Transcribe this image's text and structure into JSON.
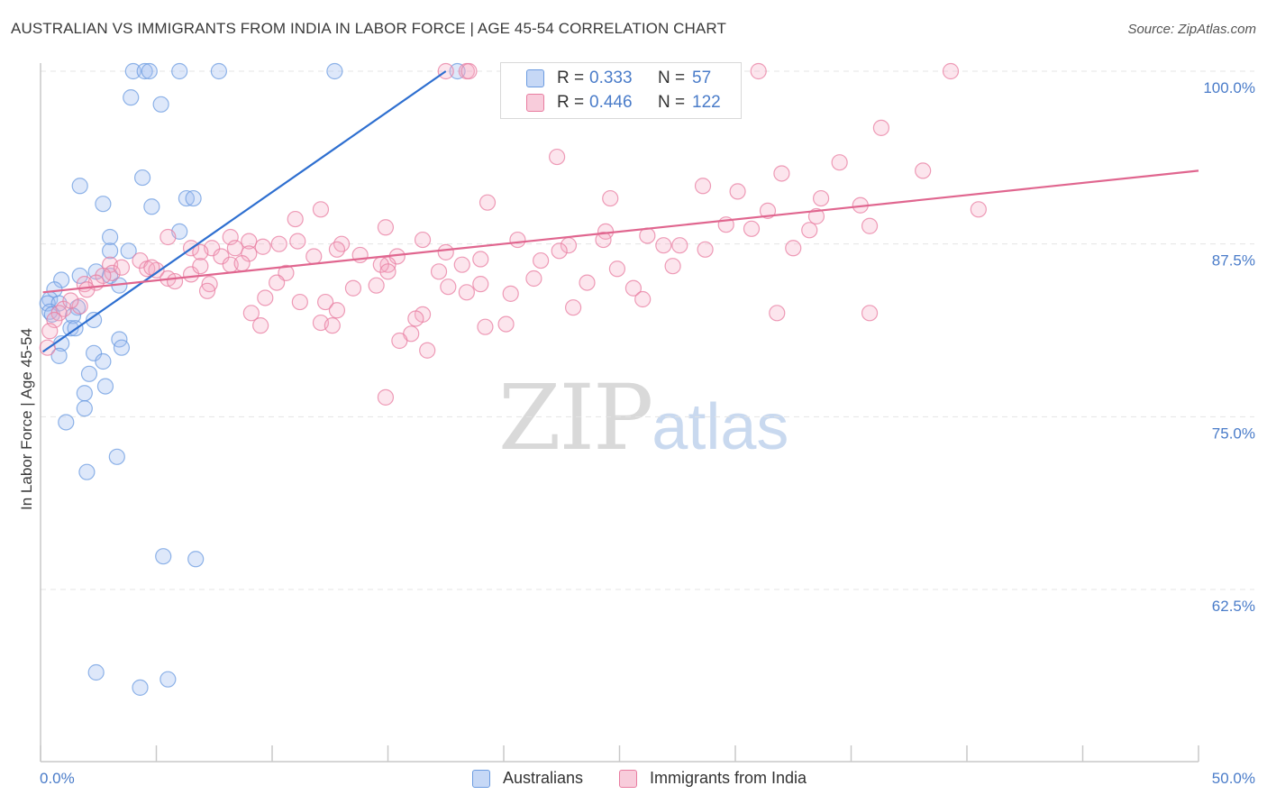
{
  "header": {
    "title": "AUSTRALIAN VS IMMIGRANTS FROM INDIA IN LABOR FORCE | AGE 45-54 CORRELATION CHART",
    "source": "Source: ZipAtlas.com"
  },
  "watermark": {
    "zip": "ZIP",
    "atlas": "atlas"
  },
  "legend": {
    "rows": [
      {
        "r_label": "R =",
        "r_value": "0.333",
        "n_label": "N =",
        "n_value": "57",
        "color": "#6b9be0"
      },
      {
        "r_label": "R =",
        "r_value": "0.446",
        "n_label": "N =",
        "n_value": "122",
        "color": "#e87ca0"
      }
    ]
  },
  "bottom_legend": {
    "australians": "Australians",
    "india": "Immigrants from India"
  },
  "chart_data": {
    "type": "scatter",
    "title": "AUSTRALIAN VS IMMIGRANTS FROM INDIA IN LABOR FORCE | AGE 45-54 CORRELATION CHART",
    "ylabel": "In Labor Force | Age 45-54",
    "xlabel": "",
    "xlim": [
      0,
      50
    ],
    "ylim": [
      52.5,
      101.5
    ],
    "y_ticks": [
      62.5,
      75.0,
      87.5,
      100.0
    ],
    "y_tick_labels": [
      "62.5%",
      "75.0%",
      "87.5%",
      "100.0%"
    ],
    "x_tick_labels": [
      "0.0%",
      "50.0%"
    ],
    "grid": true,
    "series": [
      {
        "name": "Australians",
        "color": "#6b9be0",
        "fill": "rgba(160,190,240,0.35)",
        "trend": {
          "x": [
            0.1,
            17.5
          ],
          "y": [
            79.7,
            100.0
          ]
        },
        "points": [
          [
            4.0,
            100
          ],
          [
            4.5,
            100
          ],
          [
            4.7,
            100
          ],
          [
            6.0,
            100
          ],
          [
            7.7,
            100
          ],
          [
            12.7,
            100
          ],
          [
            18.0,
            100
          ],
          [
            3.9,
            98.1
          ],
          [
            5.2,
            97.6
          ],
          [
            4.4,
            92.3
          ],
          [
            1.7,
            91.7
          ],
          [
            2.7,
            90.4
          ],
          [
            4.8,
            90.2
          ],
          [
            6.3,
            90.8
          ],
          [
            6.6,
            90.8
          ],
          [
            6.0,
            88.4
          ],
          [
            3.0,
            88.0
          ],
          [
            3.0,
            87.0
          ],
          [
            3.8,
            87.0
          ],
          [
            2.4,
            85.5
          ],
          [
            3.0,
            85.2
          ],
          [
            1.7,
            85.2
          ],
          [
            0.9,
            84.9
          ],
          [
            3.4,
            84.5
          ],
          [
            0.6,
            84.2
          ],
          [
            0.4,
            83.5
          ],
          [
            0.3,
            83.2
          ],
          [
            0.8,
            83.2
          ],
          [
            1.6,
            82.9
          ],
          [
            0.4,
            82.6
          ],
          [
            0.5,
            82.4
          ],
          [
            1.4,
            82.3
          ],
          [
            2.3,
            82.0
          ],
          [
            1.3,
            81.4
          ],
          [
            1.5,
            81.4
          ],
          [
            0.9,
            80.3
          ],
          [
            3.4,
            80.6
          ],
          [
            3.5,
            80.0
          ],
          [
            2.3,
            79.6
          ],
          [
            0.8,
            79.4
          ],
          [
            2.7,
            79.0
          ],
          [
            2.1,
            78.1
          ],
          [
            2.8,
            77.2
          ],
          [
            1.9,
            76.7
          ],
          [
            1.9,
            75.6
          ],
          [
            1.1,
            74.6
          ],
          [
            3.3,
            72.1
          ],
          [
            2.0,
            71.0
          ],
          [
            5.3,
            64.9
          ],
          [
            6.7,
            64.7
          ],
          [
            2.4,
            56.5
          ],
          [
            5.5,
            56.0
          ],
          [
            4.3,
            55.4
          ]
        ]
      },
      {
        "name": "Immigrants from India",
        "color": "#e87ca0",
        "fill": "rgba(244,170,195,0.30)",
        "trend": {
          "x": [
            0.1,
            50.0
          ],
          "y": [
            84.0,
            92.8
          ]
        },
        "points": [
          [
            17.5,
            100
          ],
          [
            18.4,
            100
          ],
          [
            18.5,
            100
          ],
          [
            31.0,
            100
          ],
          [
            39.3,
            100
          ],
          [
            36.3,
            95.9
          ],
          [
            22.3,
            93.8
          ],
          [
            34.5,
            93.4
          ],
          [
            32.0,
            92.6
          ],
          [
            28.6,
            91.7
          ],
          [
            30.1,
            91.3
          ],
          [
            33.7,
            90.8
          ],
          [
            19.3,
            90.5
          ],
          [
            24.6,
            90.8
          ],
          [
            35.4,
            90.3
          ],
          [
            40.5,
            90.0
          ],
          [
            12.1,
            90.0
          ],
          [
            11.0,
            89.3
          ],
          [
            33.5,
            89.5
          ],
          [
            29.6,
            88.9
          ],
          [
            35.8,
            88.8
          ],
          [
            24.4,
            88.4
          ],
          [
            14.9,
            88.7
          ],
          [
            33.2,
            88.5
          ],
          [
            8.2,
            88.0
          ],
          [
            5.5,
            88.0
          ],
          [
            16.5,
            87.8
          ],
          [
            9.0,
            87.7
          ],
          [
            10.3,
            87.5
          ],
          [
            11.1,
            87.7
          ],
          [
            13.0,
            87.5
          ],
          [
            22.8,
            87.4
          ],
          [
            24.3,
            87.8
          ],
          [
            26.9,
            87.4
          ],
          [
            27.6,
            87.4
          ],
          [
            28.7,
            87.1
          ],
          [
            6.5,
            87.2
          ],
          [
            7.4,
            87.2
          ],
          [
            8.4,
            87.2
          ],
          [
            12.8,
            87.1
          ],
          [
            22.4,
            87.0
          ],
          [
            9.0,
            86.8
          ],
          [
            7.8,
            86.6
          ],
          [
            11.8,
            86.6
          ],
          [
            15.4,
            86.6
          ],
          [
            19.0,
            86.4
          ],
          [
            4.3,
            86.3
          ],
          [
            15.0,
            86.0
          ],
          [
            3.0,
            86.0
          ],
          [
            8.2,
            86.0
          ],
          [
            14.7,
            86.0
          ],
          [
            4.6,
            85.7
          ],
          [
            5.0,
            85.6
          ],
          [
            3.1,
            85.4
          ],
          [
            10.6,
            85.4
          ],
          [
            18.2,
            86.0
          ],
          [
            2.7,
            85.2
          ],
          [
            6.5,
            85.3
          ],
          [
            21.3,
            85.0
          ],
          [
            24.9,
            85.7
          ],
          [
            15.0,
            85.5
          ],
          [
            17.2,
            85.5
          ],
          [
            5.5,
            85.0
          ],
          [
            2.4,
            84.7
          ],
          [
            1.9,
            84.6
          ],
          [
            7.3,
            84.6
          ],
          [
            10.2,
            84.7
          ],
          [
            14.5,
            84.5
          ],
          [
            13.5,
            84.3
          ],
          [
            17.6,
            84.4
          ],
          [
            25.6,
            84.3
          ],
          [
            18.4,
            84.0
          ],
          [
            7.2,
            84.1
          ],
          [
            20.3,
            83.9
          ],
          [
            9.7,
            83.6
          ],
          [
            11.2,
            83.3
          ],
          [
            12.3,
            83.3
          ],
          [
            26.0,
            83.5
          ],
          [
            1.7,
            83.0
          ],
          [
            1.0,
            82.8
          ],
          [
            0.8,
            82.5
          ],
          [
            12.8,
            82.7
          ],
          [
            9.1,
            82.5
          ],
          [
            16.5,
            82.4
          ],
          [
            31.8,
            82.5
          ],
          [
            35.8,
            82.5
          ],
          [
            0.6,
            82.0
          ],
          [
            12.1,
            81.8
          ],
          [
            20.1,
            81.7
          ],
          [
            12.6,
            81.6
          ],
          [
            9.5,
            81.6
          ],
          [
            19.2,
            81.5
          ],
          [
            0.4,
            81.2
          ],
          [
            16.0,
            81.0
          ],
          [
            15.5,
            80.5
          ],
          [
            0.3,
            80.0
          ],
          [
            16.7,
            79.8
          ],
          [
            14.9,
            76.4
          ],
          [
            4.8,
            85.8
          ],
          [
            6.9,
            86.9
          ],
          [
            23.6,
            84.7
          ],
          [
            19.0,
            84.6
          ],
          [
            20.6,
            87.8
          ],
          [
            13.8,
            86.7
          ],
          [
            26.2,
            88.1
          ],
          [
            17.5,
            86.9
          ],
          [
            21.6,
            86.3
          ],
          [
            30.7,
            88.6
          ],
          [
            32.5,
            87.2
          ],
          [
            38.1,
            92.8
          ],
          [
            31.4,
            89.9
          ],
          [
            3.5,
            85.8
          ],
          [
            5.8,
            84.8
          ],
          [
            1.3,
            83.4
          ],
          [
            2.0,
            84.2
          ],
          [
            9.6,
            87.3
          ],
          [
            8.7,
            86.1
          ],
          [
            16.2,
            82.1
          ],
          [
            27.3,
            85.9
          ],
          [
            23.0,
            82.9
          ],
          [
            6.9,
            85.9
          ]
        ]
      }
    ]
  }
}
